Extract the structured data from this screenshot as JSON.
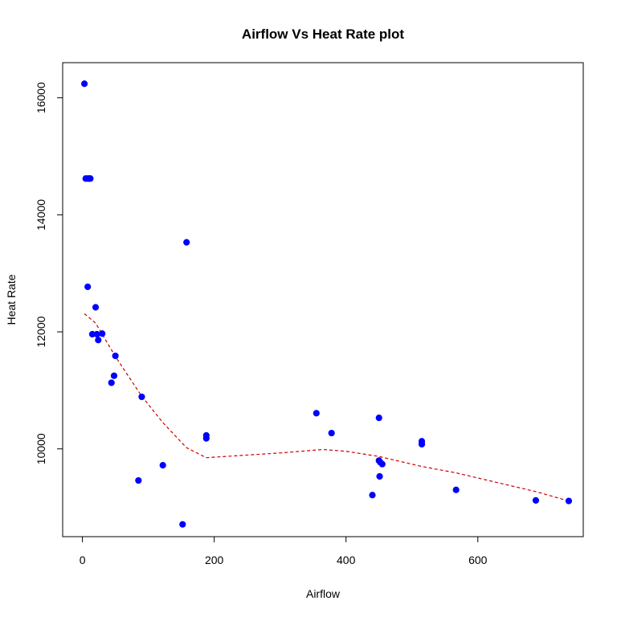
{
  "chart_data": {
    "type": "scatter",
    "title": "Airflow Vs Heat Rate plot",
    "xlabel": "Airflow",
    "ylabel": "Heat Rate",
    "xlim": [
      -30,
      760
    ],
    "ylim": [
      8500,
      16600
    ],
    "x_ticks": [
      0,
      200,
      400,
      600
    ],
    "y_ticks": [
      10000,
      12000,
      14000,
      16000
    ],
    "point_color": "#0000ff",
    "line_color": "#cc0000",
    "points": [
      {
        "x": 3,
        "y": 16240
      },
      {
        "x": 5,
        "y": 14620
      },
      {
        "x": 8,
        "y": 14620
      },
      {
        "x": 10,
        "y": 14620
      },
      {
        "x": 12,
        "y": 14620
      },
      {
        "x": 8,
        "y": 12770
      },
      {
        "x": 20,
        "y": 12420
      },
      {
        "x": 15,
        "y": 11960
      },
      {
        "x": 22,
        "y": 11960
      },
      {
        "x": 30,
        "y": 11970
      },
      {
        "x": 24,
        "y": 11860
      },
      {
        "x": 50,
        "y": 11590
      },
      {
        "x": 48,
        "y": 11250
      },
      {
        "x": 44,
        "y": 11130
      },
      {
        "x": 90,
        "y": 10890
      },
      {
        "x": 85,
        "y": 9460
      },
      {
        "x": 122,
        "y": 9720
      },
      {
        "x": 158,
        "y": 13530
      },
      {
        "x": 152,
        "y": 8710
      },
      {
        "x": 188,
        "y": 10230
      },
      {
        "x": 188,
        "y": 10180
      },
      {
        "x": 355,
        "y": 10610
      },
      {
        "x": 378,
        "y": 10270
      },
      {
        "x": 450,
        "y": 10530
      },
      {
        "x": 450,
        "y": 9800
      },
      {
        "x": 452,
        "y": 9770
      },
      {
        "x": 455,
        "y": 9740
      },
      {
        "x": 451,
        "y": 9530
      },
      {
        "x": 440,
        "y": 9210
      },
      {
        "x": 515,
        "y": 10130
      },
      {
        "x": 515,
        "y": 10080
      },
      {
        "x": 567,
        "y": 9300
      },
      {
        "x": 688,
        "y": 9120
      },
      {
        "x": 738,
        "y": 9110
      }
    ],
    "trend": [
      {
        "x": 3,
        "y": 12310
      },
      {
        "x": 20,
        "y": 12150
      },
      {
        "x": 50,
        "y": 11580
      },
      {
        "x": 90,
        "y": 10900
      },
      {
        "x": 122,
        "y": 10450
      },
      {
        "x": 158,
        "y": 10020
      },
      {
        "x": 188,
        "y": 9850
      },
      {
        "x": 300,
        "y": 9930
      },
      {
        "x": 365,
        "y": 9990
      },
      {
        "x": 400,
        "y": 9960
      },
      {
        "x": 450,
        "y": 9870
      },
      {
        "x": 515,
        "y": 9700
      },
      {
        "x": 567,
        "y": 9590
      },
      {
        "x": 688,
        "y": 9270
      },
      {
        "x": 738,
        "y": 9110
      }
    ]
  }
}
